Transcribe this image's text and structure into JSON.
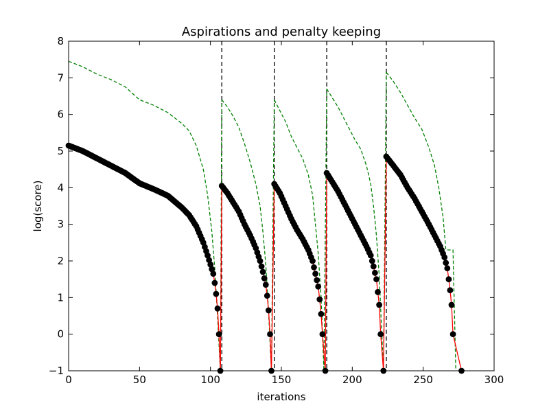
{
  "chart_data": {
    "type": "line",
    "title": "Aspirations and penalty keeping",
    "xlabel": "iterations",
    "ylabel": "log(score)",
    "xlim": [
      0,
      300
    ],
    "ylim": [
      -1,
      8
    ],
    "xticks": [
      0,
      50,
      100,
      150,
      200,
      250,
      300
    ],
    "yticks": [
      -1,
      0,
      1,
      2,
      3,
      4,
      5,
      6,
      7,
      8
    ],
    "xtick_labels": [
      "0",
      "50",
      "100",
      "150",
      "200",
      "250",
      "300"
    ],
    "ytick_labels": [
      "−1",
      "0",
      "1",
      "2",
      "3",
      "4",
      "5",
      "6",
      "7",
      "8"
    ],
    "grid": false,
    "legend": "none",
    "colors": {
      "score_line": "#ff0000",
      "score_markers": "#000000",
      "aspiration_line": "#008000",
      "restart_markers": "#000000"
    },
    "restart_iterations": [
      108,
      145,
      182,
      224
    ],
    "series": [
      {
        "style": "red-line-black-dots",
        "segments": [
          {
            "x_start": 0,
            "x_end": 107,
            "end_value": 0,
            "points": [
              [
                0,
                5.15
              ],
              [
                10,
                5.0
              ],
              [
                20,
                4.8
              ],
              [
                30,
                4.6
              ],
              [
                40,
                4.4
              ],
              [
                50,
                4.12
              ],
              [
                60,
                3.96
              ],
              [
                70,
                3.78
              ],
              [
                80,
                3.45
              ],
              [
                85,
                3.25
              ],
              [
                90,
                2.95
              ],
              [
                95,
                2.5
              ],
              [
                98,
                2.15
              ],
              [
                100,
                1.9
              ],
              [
                102,
                1.65
              ],
              [
                103,
                1.4
              ],
              [
                104,
                1.1
              ],
              [
                105,
                0.7
              ],
              [
                106,
                0.0
              ]
            ]
          },
          {
            "x_start": 108,
            "x_end": 143,
            "end_value": 0,
            "points": [
              [
                108,
                4.05
              ],
              [
                112,
                3.85
              ],
              [
                116,
                3.6
              ],
              [
                120,
                3.35
              ],
              [
                124,
                3.0
              ],
              [
                128,
                2.7
              ],
              [
                132,
                2.35
              ],
              [
                135,
                2.0
              ],
              [
                137,
                1.7
              ],
              [
                139,
                1.35
              ],
              [
                140,
                1.05
              ],
              [
                141,
                0.65
              ],
              [
                142,
                0.0
              ]
            ]
          },
          {
            "x_start": 145,
            "x_end": 181,
            "end_value": 0,
            "points": [
              [
                145,
                4.1
              ],
              [
                149,
                3.85
              ],
              [
                153,
                3.5
              ],
              [
                157,
                3.15
              ],
              [
                161,
                2.85
              ],
              [
                165,
                2.6
              ],
              [
                169,
                2.3
              ],
              [
                172,
                2.0
              ],
              [
                174,
                1.65
              ],
              [
                176,
                1.3
              ],
              [
                177,
                0.95
              ],
              [
                178,
                0.55
              ],
              [
                179,
                0.0
              ]
            ]
          },
          {
            "x_start": 182,
            "x_end": 222,
            "end_value": 0,
            "points": [
              [
                182,
                4.4
              ],
              [
                186,
                4.15
              ],
              [
                190,
                3.9
              ],
              [
                194,
                3.6
              ],
              [
                198,
                3.3
              ],
              [
                202,
                3.0
              ],
              [
                206,
                2.7
              ],
              [
                210,
                2.4
              ],
              [
                213,
                2.15
              ],
              [
                215,
                1.85
              ],
              [
                217,
                1.5
              ],
              [
                218,
                1.15
              ],
              [
                219,
                0.8
              ],
              [
                220,
                0.0
              ]
            ]
          },
          {
            "x_start": 224,
            "x_end": 277,
            "end_value": -1,
            "points": [
              [
                224,
                4.85
              ],
              [
                229,
                4.6
              ],
              [
                234,
                4.35
              ],
              [
                239,
                4.0
              ],
              [
                244,
                3.7
              ],
              [
                249,
                3.35
              ],
              [
                254,
                3.0
              ],
              [
                258,
                2.7
              ],
              [
                262,
                2.4
              ],
              [
                265,
                2.1
              ],
              [
                267,
                1.8
              ],
              [
                268,
                1.5
              ],
              [
                269,
                1.2
              ],
              [
                270,
                0.8
              ],
              [
                271,
                0.0
              ]
            ]
          }
        ]
      },
      {
        "style": "green-dashed",
        "segments": [
          {
            "points": [
              [
                0,
                7.45
              ],
              [
                10,
                7.3
              ],
              [
                20,
                7.1
              ],
              [
                30,
                6.95
              ],
              [
                40,
                6.75
              ],
              [
                50,
                6.4
              ],
              [
                60,
                6.25
              ],
              [
                70,
                6.05
              ],
              [
                80,
                5.75
              ],
              [
                85,
                5.55
              ],
              [
                90,
                5.15
              ],
              [
                95,
                4.5
              ],
              [
                98,
                3.8
              ],
              [
                101,
                2.8
              ],
              [
                103,
                1.8
              ],
              [
                105,
                0.5
              ],
              [
                107,
                -1
              ]
            ]
          },
          {
            "points": [
              [
                108,
                6.4
              ],
              [
                112,
                6.2
              ],
              [
                116,
                5.95
              ],
              [
                120,
                5.65
              ],
              [
                124,
                5.2
              ],
              [
                128,
                4.7
              ],
              [
                132,
                4.1
              ],
              [
                135,
                3.5
              ],
              [
                137,
                2.8
              ],
              [
                139,
                1.9
              ],
              [
                141,
                0.6
              ],
              [
                143,
                -1
              ]
            ]
          },
          {
            "points": [
              [
                145,
                6.4
              ],
              [
                149,
                6.1
              ],
              [
                153,
                5.8
              ],
              [
                157,
                5.4
              ],
              [
                161,
                5.1
              ],
              [
                165,
                4.8
              ],
              [
                169,
                4.35
              ],
              [
                172,
                3.8
              ],
              [
                174,
                3.0
              ],
              [
                176,
                2.2
              ],
              [
                178,
                1.0
              ],
              [
                180,
                -1
              ]
            ]
          },
          {
            "points": [
              [
                182,
                6.7
              ],
              [
                186,
                6.45
              ],
              [
                190,
                6.2
              ],
              [
                194,
                5.9
              ],
              [
                198,
                5.6
              ],
              [
                202,
                5.3
              ],
              [
                206,
                5.05
              ],
              [
                210,
                4.6
              ],
              [
                213,
                4.1
              ],
              [
                215,
                3.5
              ],
              [
                217,
                2.7
              ],
              [
                219,
                1.6
              ],
              [
                220,
                0.7
              ],
              [
                222,
                -1
              ]
            ]
          },
          {
            "points": [
              [
                224,
                7.15
              ],
              [
                229,
                6.9
              ],
              [
                234,
                6.6
              ],
              [
                239,
                6.25
              ],
              [
                244,
                5.9
              ],
              [
                249,
                5.6
              ],
              [
                254,
                5.1
              ],
              [
                258,
                4.6
              ],
              [
                261,
                4.0
              ],
              [
                264,
                3.2
              ],
              [
                266,
                2.3
              ],
              [
                271,
                2.3
              ],
              [
                273,
                -1
              ]
            ]
          }
        ]
      }
    ]
  }
}
